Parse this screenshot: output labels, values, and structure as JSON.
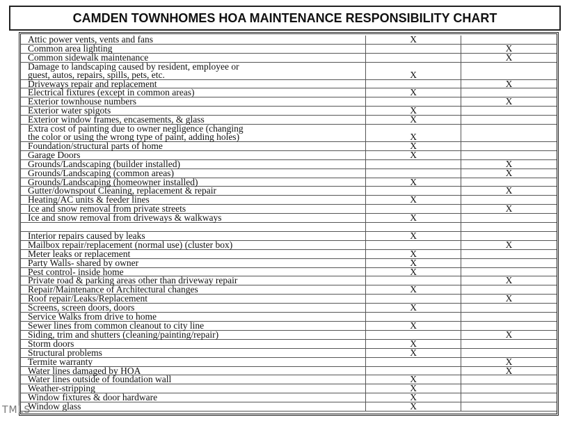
{
  "header": {
    "title": "CAMDEN TOWNHOMES HOA MAINTENANCE RESPONSIBILITY CHART"
  },
  "table": {
    "rows": [
      {
        "item": [
          "Attic power vents, vents and fans"
        ],
        "owner": "X"
      },
      {
        "item": [
          "Common area lighting"
        ],
        "hoa": "X"
      },
      {
        "item": [
          "Common sidewalk maintenance"
        ],
        "hoa": "X"
      },
      {
        "item": [
          "Damage to landscaping caused by resident, employee or",
          "guest, autos, repairs, spills, pets, etc."
        ],
        "owner": "X"
      },
      {
        "item": [
          "Driveways repair and replacement"
        ],
        "hoa": "X"
      },
      {
        "item": [
          "Electrical fixtures (except in common areas)"
        ],
        "owner": "X"
      },
      {
        "item": [
          "Exterior townhouse numbers"
        ],
        "hoa": "X"
      },
      {
        "item": [
          "Exterior water spigots"
        ],
        "owner": "X"
      },
      {
        "item": [
          "Exterior window frames, encasements, & glass"
        ],
        "owner": "X"
      },
      {
        "item": [
          "Extra cost of painting due to owner negligence (changing",
          "the color or using the wrong type of paint, adding holes)"
        ],
        "owner": "X"
      },
      {
        "item": [
          "Foundation/structural parts of home"
        ],
        "owner": "X"
      },
      {
        "item": [
          "Garage Doors"
        ],
        "owner": "X"
      },
      {
        "item": [
          "Grounds/Landscaping (builder installed)"
        ],
        "hoa": "X"
      },
      {
        "item": [
          "Grounds/Landscaping (common areas)"
        ],
        "hoa": "X"
      },
      {
        "item": [
          "Grounds/Landscaping (homeowner installed)"
        ],
        "owner": "X"
      },
      {
        "item": [
          "Gutter/downspout Cleaning, replacement & repair"
        ],
        "hoa": "X"
      },
      {
        "item": [
          "Heating/AC units & feeder lines"
        ],
        "owner": "X"
      },
      {
        "item": [
          "Ice and snow removal from private streets"
        ],
        "hoa": "X"
      },
      {
        "item": [
          "Ice and snow removal from driveways & walkways"
        ],
        "owner": "X"
      },
      {},
      {
        "item": [
          "Interior repairs caused by leaks"
        ],
        "owner": "X"
      },
      {
        "item": [
          "Mailbox repair/replacement (normal use) (cluster box)"
        ],
        "hoa": "X"
      },
      {
        "item": [
          "Meter leaks or replacement"
        ],
        "owner": "X"
      },
      {
        "item": [
          "Party Walls- shared by owner"
        ],
        "owner": "X"
      },
      {
        "item": [
          "Pest control- inside home"
        ],
        "owner": "X"
      },
      {
        "item": [
          "Private road & parking areas other than driveway repair"
        ],
        "hoa": "X"
      },
      {
        "item": [
          "Repair/Maintenance of Architectural changes"
        ],
        "owner": "X"
      },
      {
        "item": [
          "Roof repair/Leaks/Replacement"
        ],
        "hoa": "X"
      },
      {
        "item": [
          "Screens, screen doors, doors"
        ],
        "owner": "X"
      },
      {
        "item": [
          "Service Walks from drive to home"
        ]
      },
      {
        "item": [
          "Sewer lines from common cleanout to city line"
        ],
        "owner": "X"
      },
      {
        "item": [
          "Siding, trim and shutters (cleaning/painting/repair)"
        ],
        "hoa": "X"
      },
      {
        "item": [
          "Storm doors"
        ],
        "owner": "X"
      },
      {
        "item": [
          "Structural problems"
        ],
        "owner": "X"
      },
      {
        "item": [
          "Termite warranty"
        ],
        "hoa": "X"
      },
      {
        "item": [
          "Water lines damaged by HOA"
        ],
        "hoa": "X"
      },
      {
        "item": [
          "Water lines outside of foundation wall"
        ],
        "owner": "X"
      },
      {
        "item": [
          "Weather-stripping"
        ],
        "owner": "X"
      },
      {
        "item": [
          "Window fixtures & door hardware"
        ],
        "owner": "X"
      },
      {
        "item": [
          "Window glass"
        ],
        "owner": "X"
      }
    ]
  },
  "watermark": "TMLS"
}
